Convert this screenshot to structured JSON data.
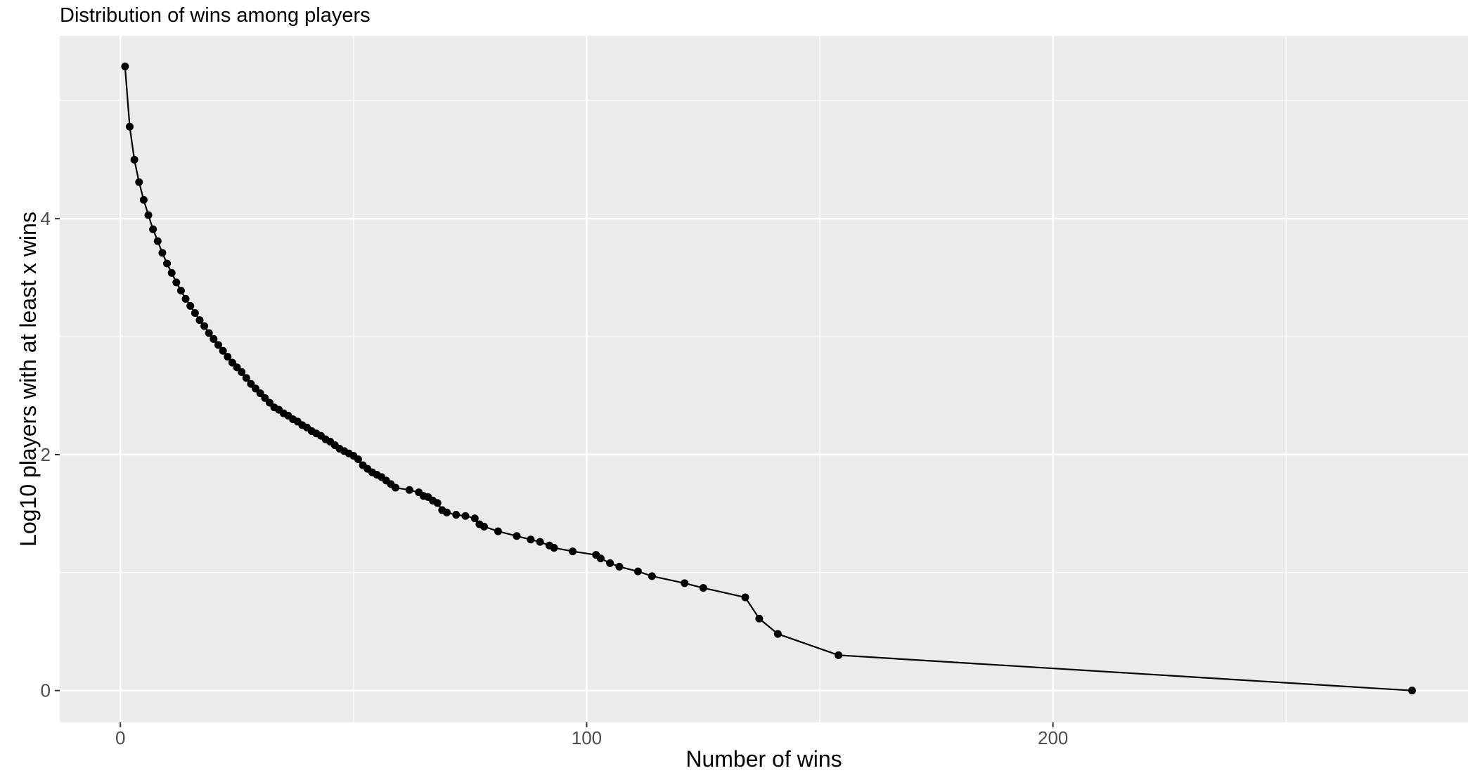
{
  "chart_data": {
    "type": "line",
    "title": "Distribution of wins among players",
    "xlabel": "Number of wins",
    "ylabel": "Log10 players with at least x wins",
    "xlim": [
      -13,
      289
    ],
    "ylim": [
      -0.27,
      5.55
    ],
    "x_ticks": [
      0,
      100,
      200
    ],
    "x_tick_labels": [
      "0",
      "100",
      "200"
    ],
    "x_minor_ticks": [
      50,
      150,
      250
    ],
    "y_ticks": [
      0,
      2,
      4
    ],
    "y_tick_labels": [
      "0",
      "2",
      "4"
    ],
    "y_minor_ticks": [
      1,
      3,
      5
    ],
    "grid": true,
    "legend": "none",
    "background": "#ebebeb",
    "grid_color": "#ffffff",
    "line_color": "#000000",
    "point_color": "#000000",
    "series": [
      {
        "x": [
          1,
          2,
          3,
          4,
          5,
          6,
          7,
          8,
          9,
          10,
          11,
          12,
          13,
          14,
          15,
          16,
          17,
          18,
          19,
          20,
          21,
          22,
          23,
          24,
          25,
          26,
          27,
          28,
          29,
          30,
          31,
          32,
          33,
          34,
          35,
          36,
          37,
          38,
          39,
          40,
          41,
          42,
          43,
          44,
          45,
          46,
          47,
          48,
          49,
          50,
          51,
          52,
          53,
          54,
          55,
          56,
          57,
          58,
          59,
          62,
          64,
          65,
          66,
          67,
          68,
          69,
          70,
          72,
          74,
          76,
          77,
          78,
          81,
          85,
          88,
          90,
          92,
          93,
          97,
          102,
          103,
          105,
          107,
          111,
          114,
          121,
          125,
          134,
          137,
          141,
          154,
          277
        ],
        "y": [
          5.29,
          4.78,
          4.5,
          4.31,
          4.16,
          4.03,
          3.91,
          3.81,
          3.71,
          3.62,
          3.54,
          3.46,
          3.39,
          3.32,
          3.26,
          3.2,
          3.14,
          3.09,
          3.03,
          2.98,
          2.93,
          2.88,
          2.83,
          2.78,
          2.74,
          2.7,
          2.65,
          2.6,
          2.56,
          2.52,
          2.48,
          2.44,
          2.4,
          2.38,
          2.35,
          2.33,
          2.3,
          2.28,
          2.25,
          2.23,
          2.2,
          2.18,
          2.16,
          2.13,
          2.11,
          2.08,
          2.05,
          2.03,
          2.01,
          1.99,
          1.96,
          1.91,
          1.88,
          1.85,
          1.83,
          1.81,
          1.78,
          1.75,
          1.72,
          1.7,
          1.68,
          1.65,
          1.64,
          1.61,
          1.59,
          1.53,
          1.51,
          1.49,
          1.48,
          1.46,
          1.41,
          1.39,
          1.35,
          1.31,
          1.28,
          1.26,
          1.23,
          1.21,
          1.18,
          1.15,
          1.12,
          1.08,
          1.05,
          1.01,
          0.97,
          0.91,
          0.87,
          0.79,
          0.61,
          0.48,
          0.3,
          0.0
        ]
      }
    ]
  }
}
